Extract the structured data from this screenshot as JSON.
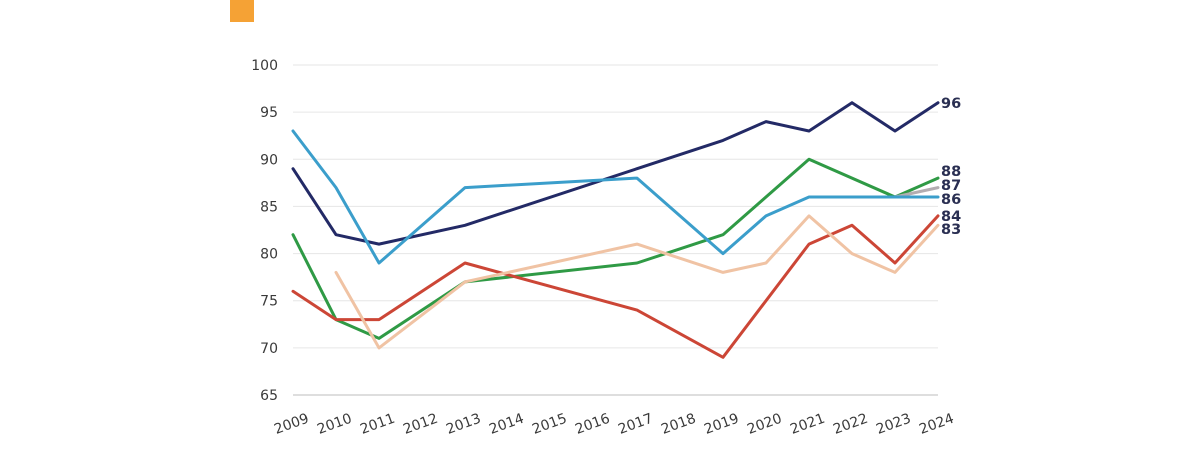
{
  "page": {
    "title_fragment": "",
    "accent_color": "#f5a235",
    "title_color": "#262f6b"
  },
  "chart_data": {
    "type": "line",
    "title": "",
    "xlabel": "",
    "ylabel": "",
    "x": [
      "2009",
      "2010",
      "2011",
      "2012",
      "2013",
      "2014",
      "2015",
      "2016",
      "2017",
      "2018",
      "2019",
      "2020",
      "2021",
      "2022",
      "2023",
      "2024"
    ],
    "xlim": [
      2009,
      2024
    ],
    "ylim": [
      65,
      100
    ],
    "yticks": [
      65,
      70,
      75,
      80,
      85,
      90,
      95,
      100
    ],
    "grid": "horizontal",
    "legend": "none (end-of-line value labels)",
    "series": [
      {
        "color": "#232a66",
        "end_label": "96",
        "values": [
          [
            2009,
            89
          ],
          [
            2010,
            82
          ],
          [
            2011,
            81
          ],
          [
            2013,
            83
          ],
          [
            2017,
            89
          ],
          [
            2019,
            92
          ],
          [
            2020,
            94
          ],
          [
            2021,
            93
          ],
          [
            2022,
            96
          ],
          [
            2023,
            93
          ],
          [
            2024,
            96
          ]
        ]
      },
      {
        "color": "#2f9a45",
        "end_label": "88",
        "values": [
          [
            2009,
            82
          ],
          [
            2010,
            73
          ],
          [
            2011,
            71
          ],
          [
            2013,
            77
          ],
          [
            2017,
            79
          ],
          [
            2019,
            82
          ],
          [
            2021,
            90
          ],
          [
            2023,
            86
          ],
          [
            2024,
            88
          ]
        ]
      },
      {
        "color": "#b3adb1",
        "end_label": "87",
        "values": [
          [
            2023,
            86
          ],
          [
            2024,
            87
          ]
        ]
      },
      {
        "color": "#3b9ecb",
        "end_label": "86",
        "values": [
          [
            2009,
            93
          ],
          [
            2010,
            87
          ],
          [
            2011,
            79
          ],
          [
            2013,
            87
          ],
          [
            2017,
            88
          ],
          [
            2019,
            80
          ],
          [
            2020,
            84
          ],
          [
            2021,
            86
          ],
          [
            2024,
            86
          ]
        ]
      },
      {
        "color": "#cc4636",
        "end_label": "84",
        "values": [
          [
            2009,
            76
          ],
          [
            2010,
            73
          ],
          [
            2011,
            73
          ],
          [
            2013,
            79
          ],
          [
            2017,
            74
          ],
          [
            2019,
            69
          ],
          [
            2021,
            81
          ],
          [
            2022,
            83
          ],
          [
            2023,
            79
          ],
          [
            2024,
            84
          ]
        ]
      },
      {
        "color": "#f0c3a4",
        "end_label": "83",
        "values": [
          [
            2010,
            78
          ],
          [
            2011,
            70
          ],
          [
            2013,
            77
          ],
          [
            2017,
            81
          ],
          [
            2019,
            78
          ],
          [
            2020,
            79
          ],
          [
            2021,
            84
          ],
          [
            2022,
            80
          ],
          [
            2023,
            78
          ],
          [
            2024,
            83
          ]
        ]
      }
    ]
  }
}
